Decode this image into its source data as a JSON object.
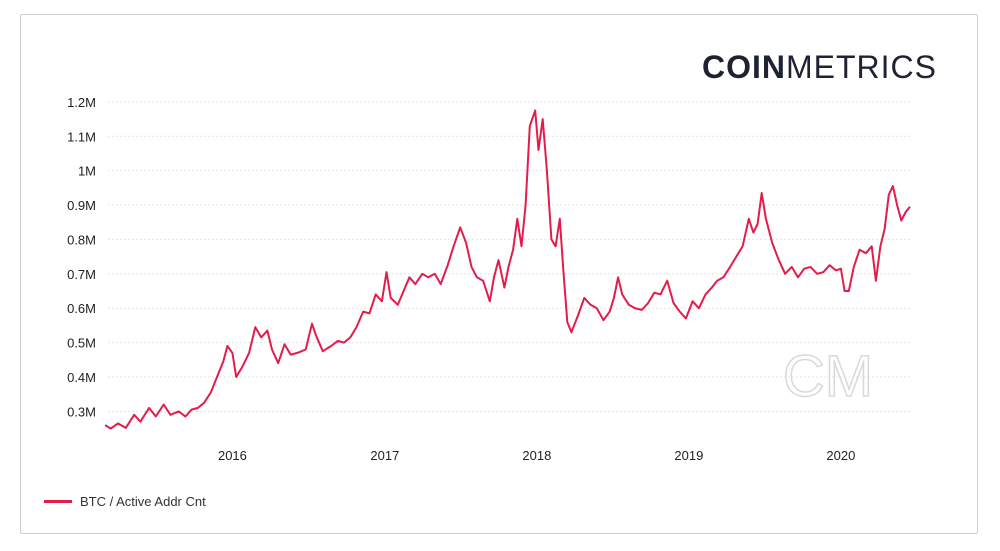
{
  "brand": {
    "name_bold": "COIN",
    "name_light": "METRICS",
    "watermark": "CM"
  },
  "colors": {
    "series": "#e31c4c",
    "grid": "#e4e4e4",
    "axis_text": "#222222",
    "brand": "#1f2233"
  },
  "chart_data": {
    "type": "line",
    "title": "",
    "xlabel": "",
    "ylabel": "",
    "y_ticks": [
      {
        "value": 300000,
        "label": "0.3M"
      },
      {
        "value": 400000,
        "label": "0.4M"
      },
      {
        "value": 500000,
        "label": "0.5M"
      },
      {
        "value": 600000,
        "label": "0.6M"
      },
      {
        "value": 700000,
        "label": "0.7M"
      },
      {
        "value": 800000,
        "label": "0.8M"
      },
      {
        "value": 900000,
        "label": "0.9M"
      },
      {
        "value": 1000000,
        "label": "1M"
      },
      {
        "value": 1100000,
        "label": "1.1M"
      },
      {
        "value": 1200000,
        "label": "1.2M"
      }
    ],
    "x_ticks": [
      {
        "value": "2016-01-01",
        "label": "2016"
      },
      {
        "value": "2017-01-01",
        "label": "2017"
      },
      {
        "value": "2018-01-01",
        "label": "2018"
      },
      {
        "value": "2019-01-01",
        "label": "2019"
      },
      {
        "value": "2020-01-01",
        "label": "2020"
      }
    ],
    "xlim": [
      "2015-03-01",
      "2020-06-15"
    ],
    "ylim": [
      240000,
      1220000
    ],
    "grid": "horizontal",
    "legend_position": "bottom-left",
    "series": [
      {
        "name": "BTC / Active Addr Cnt",
        "color": "#e31c4c",
        "points": [
          [
            "2015-03-01",
            260000
          ],
          [
            "2015-03-15",
            250000
          ],
          [
            "2015-04-01",
            265000
          ],
          [
            "2015-04-20",
            252000
          ],
          [
            "2015-05-10",
            290000
          ],
          [
            "2015-05-25",
            270000
          ],
          [
            "2015-06-15",
            310000
          ],
          [
            "2015-07-01",
            285000
          ],
          [
            "2015-07-20",
            320000
          ],
          [
            "2015-08-05",
            290000
          ],
          [
            "2015-08-25",
            300000
          ],
          [
            "2015-09-10",
            285000
          ],
          [
            "2015-09-25",
            305000
          ],
          [
            "2015-10-10",
            310000
          ],
          [
            "2015-10-25",
            325000
          ],
          [
            "2015-11-10",
            355000
          ],
          [
            "2015-11-25",
            400000
          ],
          [
            "2015-12-10",
            445000
          ],
          [
            "2015-12-20",
            490000
          ],
          [
            "2016-01-01",
            470000
          ],
          [
            "2016-01-10",
            400000
          ],
          [
            "2016-01-25",
            430000
          ],
          [
            "2016-02-10",
            470000
          ],
          [
            "2016-02-25",
            545000
          ],
          [
            "2016-03-10",
            515000
          ],
          [
            "2016-03-25",
            535000
          ],
          [
            "2016-04-05",
            480000
          ],
          [
            "2016-04-20",
            440000
          ],
          [
            "2016-05-05",
            495000
          ],
          [
            "2016-05-20",
            465000
          ],
          [
            "2016-06-05",
            470000
          ],
          [
            "2016-06-25",
            480000
          ],
          [
            "2016-07-10",
            555000
          ],
          [
            "2016-07-20",
            520000
          ],
          [
            "2016-08-05",
            475000
          ],
          [
            "2016-08-25",
            490000
          ],
          [
            "2016-09-10",
            505000
          ],
          [
            "2016-09-25",
            500000
          ],
          [
            "2016-10-10",
            515000
          ],
          [
            "2016-10-25",
            545000
          ],
          [
            "2016-11-10",
            590000
          ],
          [
            "2016-11-25",
            585000
          ],
          [
            "2016-12-10",
            640000
          ],
          [
            "2016-12-25",
            620000
          ],
          [
            "2017-01-05",
            705000
          ],
          [
            "2017-01-15",
            630000
          ],
          [
            "2017-02-01",
            610000
          ],
          [
            "2017-02-15",
            650000
          ],
          [
            "2017-03-01",
            690000
          ],
          [
            "2017-03-15",
            670000
          ],
          [
            "2017-04-01",
            700000
          ],
          [
            "2017-04-15",
            690000
          ],
          [
            "2017-05-01",
            700000
          ],
          [
            "2017-05-15",
            670000
          ],
          [
            "2017-06-01",
            725000
          ],
          [
            "2017-06-15",
            780000
          ],
          [
            "2017-07-01",
            835000
          ],
          [
            "2017-07-15",
            790000
          ],
          [
            "2017-07-28",
            720000
          ],
          [
            "2017-08-10",
            690000
          ],
          [
            "2017-08-25",
            680000
          ],
          [
            "2017-09-10",
            620000
          ],
          [
            "2017-09-20",
            690000
          ],
          [
            "2017-10-01",
            740000
          ],
          [
            "2017-10-15",
            660000
          ],
          [
            "2017-10-25",
            720000
          ],
          [
            "2017-11-05",
            770000
          ],
          [
            "2017-11-15",
            860000
          ],
          [
            "2017-11-25",
            780000
          ],
          [
            "2017-12-05",
            900000
          ],
          [
            "2017-12-15",
            1130000
          ],
          [
            "2017-12-28",
            1175000
          ],
          [
            "2018-01-05",
            1060000
          ],
          [
            "2018-01-15",
            1150000
          ],
          [
            "2018-01-25",
            1000000
          ],
          [
            "2018-02-05",
            800000
          ],
          [
            "2018-02-15",
            780000
          ],
          [
            "2018-02-25",
            860000
          ],
          [
            "2018-03-05",
            720000
          ],
          [
            "2018-03-15",
            560000
          ],
          [
            "2018-03-25",
            530000
          ],
          [
            "2018-04-10",
            580000
          ],
          [
            "2018-04-25",
            630000
          ],
          [
            "2018-05-10",
            610000
          ],
          [
            "2018-05-25",
            600000
          ],
          [
            "2018-06-10",
            565000
          ],
          [
            "2018-06-25",
            590000
          ],
          [
            "2018-07-05",
            630000
          ],
          [
            "2018-07-15",
            690000
          ],
          [
            "2018-07-25",
            640000
          ],
          [
            "2018-08-10",
            610000
          ],
          [
            "2018-08-25",
            600000
          ],
          [
            "2018-09-10",
            595000
          ],
          [
            "2018-09-25",
            615000
          ],
          [
            "2018-10-10",
            645000
          ],
          [
            "2018-10-25",
            640000
          ],
          [
            "2018-11-10",
            680000
          ],
          [
            "2018-11-25",
            615000
          ],
          [
            "2018-12-10",
            590000
          ],
          [
            "2018-12-25",
            570000
          ],
          [
            "2019-01-10",
            620000
          ],
          [
            "2019-01-25",
            600000
          ],
          [
            "2019-02-10",
            640000
          ],
          [
            "2019-02-25",
            660000
          ],
          [
            "2019-03-10",
            680000
          ],
          [
            "2019-03-25",
            690000
          ],
          [
            "2019-04-10",
            720000
          ],
          [
            "2019-04-25",
            750000
          ],
          [
            "2019-05-10",
            780000
          ],
          [
            "2019-05-25",
            860000
          ],
          [
            "2019-06-05",
            820000
          ],
          [
            "2019-06-15",
            845000
          ],
          [
            "2019-06-25",
            935000
          ],
          [
            "2019-07-05",
            860000
          ],
          [
            "2019-07-20",
            790000
          ],
          [
            "2019-08-05",
            740000
          ],
          [
            "2019-08-20",
            700000
          ],
          [
            "2019-09-05",
            720000
          ],
          [
            "2019-09-20",
            690000
          ],
          [
            "2019-10-05",
            715000
          ],
          [
            "2019-10-20",
            720000
          ],
          [
            "2019-11-05",
            700000
          ],
          [
            "2019-11-20",
            705000
          ],
          [
            "2019-12-05",
            725000
          ],
          [
            "2019-12-20",
            710000
          ],
          [
            "2020-01-01",
            715000
          ],
          [
            "2020-01-10",
            650000
          ],
          [
            "2020-01-20",
            650000
          ],
          [
            "2020-02-01",
            720000
          ],
          [
            "2020-02-15",
            770000
          ],
          [
            "2020-03-01",
            760000
          ],
          [
            "2020-03-15",
            780000
          ],
          [
            "2020-03-25",
            680000
          ],
          [
            "2020-04-05",
            780000
          ],
          [
            "2020-04-15",
            830000
          ],
          [
            "2020-04-25",
            930000
          ],
          [
            "2020-05-05",
            955000
          ],
          [
            "2020-05-15",
            900000
          ],
          [
            "2020-05-25",
            855000
          ],
          [
            "2020-06-05",
            880000
          ],
          [
            "2020-06-15",
            895000
          ]
        ]
      }
    ]
  }
}
